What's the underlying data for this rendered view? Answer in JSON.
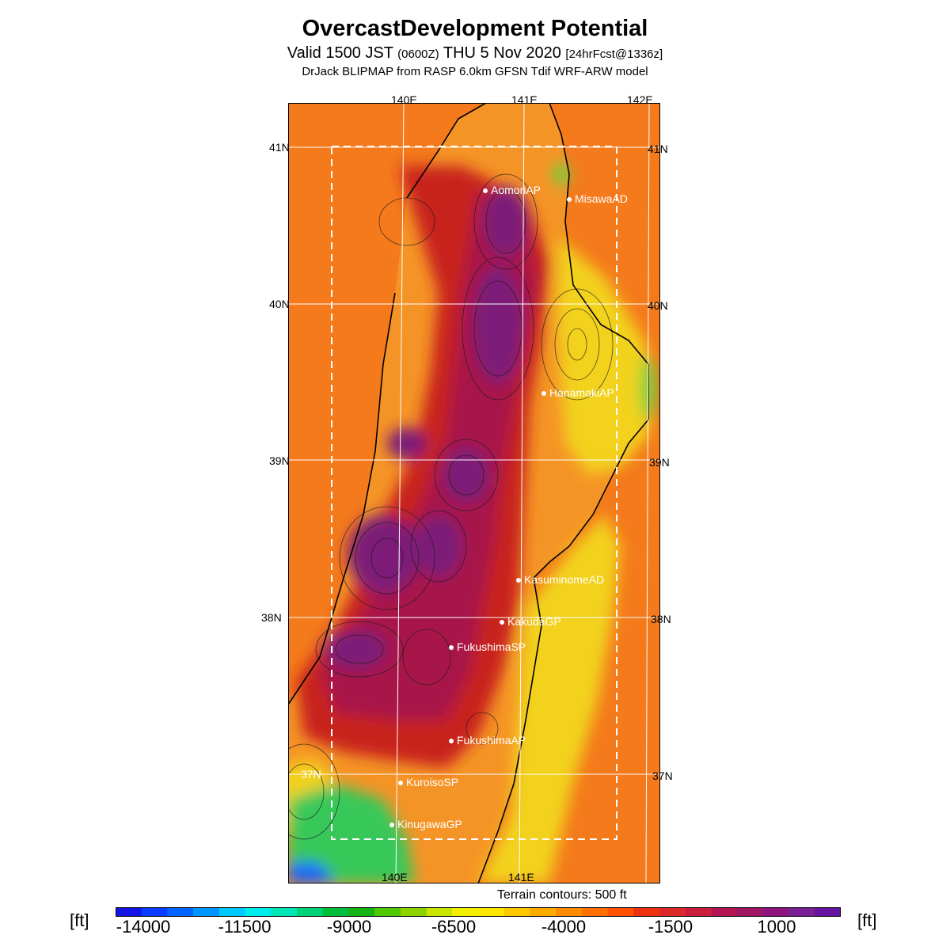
{
  "header": {
    "title": "OvercastDevelopment Potential",
    "valid_prefix": "Valid 1500 JST",
    "valid_utc": "(0600Z)",
    "valid_date": "THU 5 Nov 2020",
    "forecast": "[24hrFcst@1336z]",
    "model": "DrJack BLIPMAP from RASP 6.0km GFSN Tdif WRF-ARW model"
  },
  "axes": {
    "lon_top": [
      "140E",
      "141E",
      "142E"
    ],
    "lon_bottom": [
      "140E",
      "141E"
    ],
    "lat_left": [
      "41N",
      "40N",
      "39N",
      "38N",
      "37N"
    ],
    "lat_right": [
      "41N",
      "40N",
      "39N",
      "38N",
      "37N"
    ]
  },
  "sites": [
    {
      "name": "AomoriAP"
    },
    {
      "name": "MisawaAD"
    },
    {
      "name": "HanamakiAP"
    },
    {
      "name": "KasuminomeAD"
    },
    {
      "name": "KakudaGP"
    },
    {
      "name": "FukushimaSP"
    },
    {
      "name": "FukushimaAP"
    },
    {
      "name": "KuroisoSP"
    },
    {
      "name": "KinugawaGP"
    }
  ],
  "terrain_note": "Terrain contours: 500 ft",
  "colorbar": {
    "unit": "[ft]",
    "labels": [
      "-14000",
      "-11500",
      "-9000",
      "-6500",
      "-4000",
      "-1500",
      "1000"
    ],
    "colors": [
      "#1414e6",
      "#0a3cff",
      "#0064ff",
      "#0096ff",
      "#00c8ff",
      "#00ebeb",
      "#00e6b4",
      "#00d278",
      "#00be3c",
      "#14b414",
      "#50c800",
      "#8cd200",
      "#c8e600",
      "#f0f000",
      "#ffe600",
      "#ffc800",
      "#ffaa00",
      "#ff8c00",
      "#ff6e00",
      "#ff5000",
      "#f03214",
      "#dc2828",
      "#c81e3c",
      "#b41450",
      "#a01464",
      "#8c147d",
      "#781e96",
      "#6414a0"
    ]
  },
  "map_colors": {
    "sea": "#f47a1c",
    "land_orange": "#f59426",
    "high_red": "#c8241e",
    "high_crimson": "#a8144a",
    "high_purple": "#7c1a78",
    "coast_yellow": "#f2d21e",
    "coast_green": "#6cd23c",
    "southwest_green": "#38c85a",
    "southwest_blue": "#1464ff"
  }
}
